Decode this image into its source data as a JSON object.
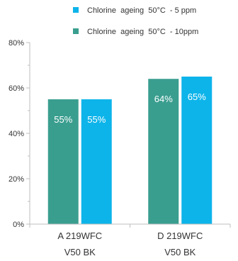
{
  "chart_data": {
    "type": "bar",
    "categories": [
      [
        "A 219WFC",
        "V50 BK"
      ],
      [
        "D 219WFC",
        "V50 BK"
      ]
    ],
    "series": [
      {
        "name": "Chlorine  ageing  50°C  - 10ppm",
        "color": "#3a9e8f",
        "values": [
          55,
          64
        ]
      },
      {
        "name": "Chlorine  ageing  50°C  - 5 ppm",
        "color": "#0db4ea",
        "values": [
          55,
          65
        ]
      }
    ],
    "legend_order": [
      1,
      0
    ],
    "data_labels": [
      [
        "55%",
        "64%"
      ],
      [
        "55%",
        "65%"
      ]
    ],
    "y_ticks": [
      0,
      20,
      40,
      60,
      80
    ],
    "y_tick_labels": [
      "0%",
      "20%",
      "40%",
      "60%",
      "80%"
    ],
    "ylim": [
      0,
      80
    ],
    "minor_ticks": [
      10,
      30,
      50,
      70
    ],
    "legend_position": "top-right",
    "grid": false,
    "title": "",
    "xlabel": "",
    "ylabel": ""
  }
}
